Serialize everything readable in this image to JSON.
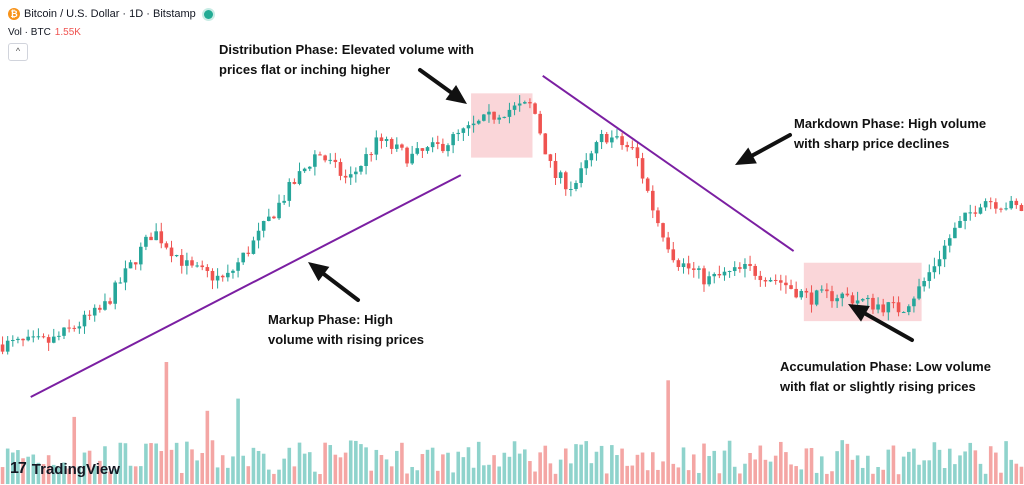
{
  "header": {
    "title": "Bitcoin / U.S. Dollar · 1D · Bitstamp",
    "btc_glyph": "₿",
    "volume_label": "Vol · BTC",
    "volume_value": "1.55K",
    "collapse_glyph": "^"
  },
  "annotations": {
    "distribution": [
      "Distribution Phase: Elevated volume with",
      "prices flat or inching higher"
    ],
    "markdown": [
      "Markdown Phase: High volume",
      "with sharp price declines"
    ],
    "markup": [
      "Markup  Phase: High",
      "volume with rising prices"
    ],
    "accumulation": [
      "Accumulation Phase: Low volume",
      "with flat or slightly rising prices"
    ]
  },
  "branding": {
    "logo_mark": "17",
    "logo_text": "TradingView"
  },
  "colors": {
    "up": "#26a69a",
    "down": "#ef5350",
    "up_volume": "#8fd3cc",
    "down_volume": "#f4a6a4",
    "trendline": "#7b1fa2",
    "highlight": "#f8c8cc"
  },
  "chart_data": {
    "type": "candlestick",
    "x_range": [
      0,
      200
    ],
    "y_range": [
      0,
      100
    ],
    "close_trajectory": [
      [
        0,
        6
      ],
      [
        10,
        7
      ],
      [
        20,
        18
      ],
      [
        30,
        45
      ],
      [
        37,
        32
      ],
      [
        44,
        28
      ],
      [
        50,
        42
      ],
      [
        56,
        58
      ],
      [
        62,
        72
      ],
      [
        68,
        62
      ],
      [
        74,
        76
      ],
      [
        80,
        70
      ],
      [
        86,
        74
      ],
      [
        92,
        80
      ],
      [
        98,
        86
      ],
      [
        104,
        88
      ],
      [
        108,
        64
      ],
      [
        112,
        60
      ],
      [
        118,
        78
      ],
      [
        124,
        72
      ],
      [
        128,
        50
      ],
      [
        132,
        35
      ],
      [
        138,
        28
      ],
      [
        146,
        32
      ],
      [
        152,
        28
      ],
      [
        158,
        22
      ],
      [
        164,
        23
      ],
      [
        170,
        20
      ],
      [
        176,
        18
      ],
      [
        180,
        26
      ],
      [
        186,
        44
      ],
      [
        192,
        56
      ],
      [
        200,
        52
      ]
    ],
    "volume_spikes": [
      {
        "x": 32,
        "level": 1.0
      },
      {
        "x": 130,
        "level": 0.85
      },
      {
        "x": 46,
        "level": 0.7
      },
      {
        "x": 14,
        "level": 0.55
      },
      {
        "x": 40,
        "level": 0.6
      }
    ],
    "trendlines": [
      {
        "name": "markup-support",
        "from": [
          6,
          -12
        ],
        "to": [
          90,
          64
        ]
      },
      {
        "name": "markdown-resistance",
        "from": [
          106,
          98
        ],
        "to": [
          155,
          38
        ]
      }
    ],
    "highlight_zones": [
      {
        "name": "distribution",
        "x": [
          92,
          104
        ],
        "y": [
          70,
          92
        ]
      },
      {
        "name": "accumulation",
        "x": [
          157,
          180
        ],
        "y": [
          14,
          34
        ]
      }
    ]
  }
}
